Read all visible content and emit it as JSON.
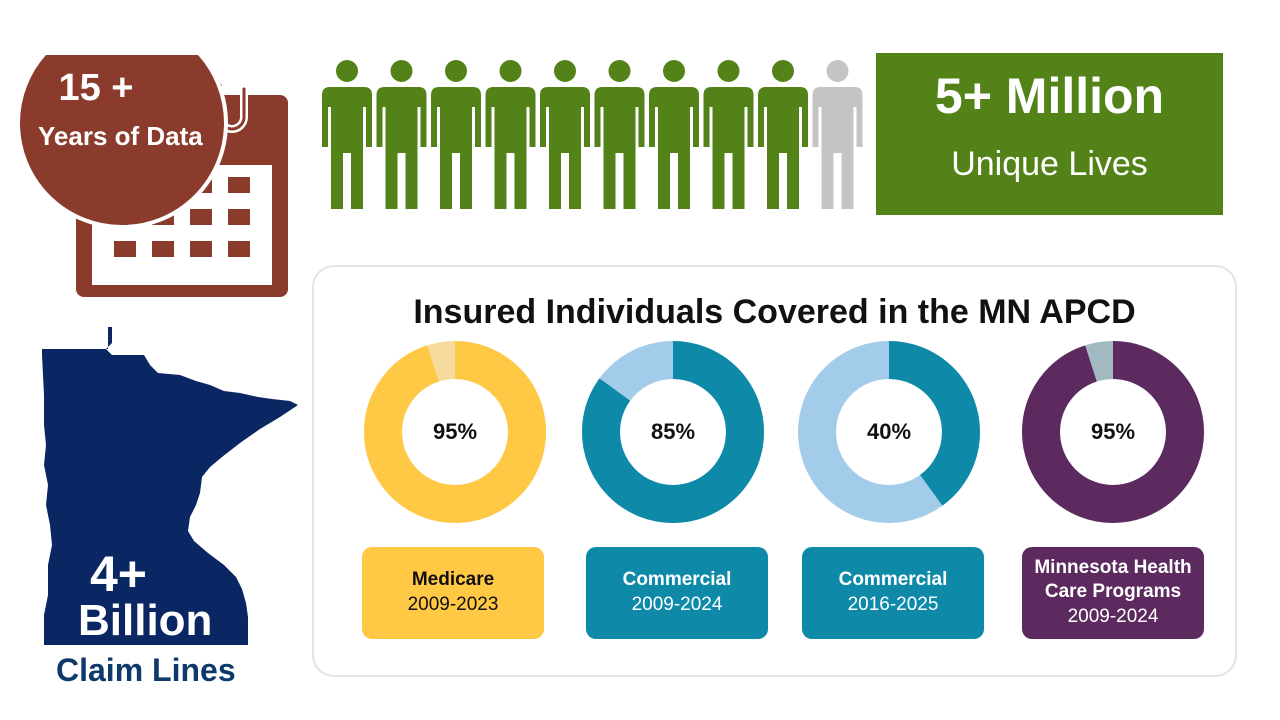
{
  "calendar": {
    "years_number": "15 +",
    "years_label": "Years of Data",
    "colors": {
      "main": "#8b3b2b"
    }
  },
  "people": {
    "total": 10,
    "highlighted": 9,
    "colors": {
      "highlighted": "#538218",
      "other": "#c4c4c4"
    }
  },
  "lives": {
    "number": "5+ Million",
    "label": "Unique Lives",
    "colors": {
      "background": "#538218"
    }
  },
  "claims": {
    "number": "4+",
    "unit": "Billion",
    "label": "Claim Lines",
    "colors": {
      "map": "#0a2663",
      "label": "#0d3a6b"
    }
  },
  "coverage": {
    "title": "Insured Individuals Covered in the MN APCD",
    "programs": [
      {
        "percent_label": "95%",
        "percent": 95,
        "name_lines": [
          "Medicare"
        ],
        "years": "2009-2023",
        "colors": {
          "main": "#ffc845",
          "rest": "#f5dc9c",
          "box": "#ffc845",
          "text": "#111111"
        }
      },
      {
        "percent_label": "85%",
        "percent": 85,
        "name_lines": [
          "Commercial"
        ],
        "years": "2009-2024",
        "colors": {
          "main": "#0e8aa8",
          "rest": "#a3cbea",
          "box": "#0e8aa8",
          "text": "#ffffff"
        }
      },
      {
        "percent_label": "40%",
        "percent": 40,
        "name_lines": [
          "Commercial"
        ],
        "years": "2016-2025",
        "colors": {
          "main": "#0e8aa8",
          "rest": "#a3cbea",
          "box": "#0e8aa8",
          "text": "#ffffff"
        }
      },
      {
        "percent_label": "95%",
        "percent": 95,
        "name_lines": [
          "Minnesota Health",
          "Care Programs"
        ],
        "years": "2009-2024",
        "colors": {
          "main": "#5c2a5e",
          "rest": "#a3b9c1",
          "box": "#5c2a5e",
          "text": "#ffffff"
        }
      }
    ]
  }
}
